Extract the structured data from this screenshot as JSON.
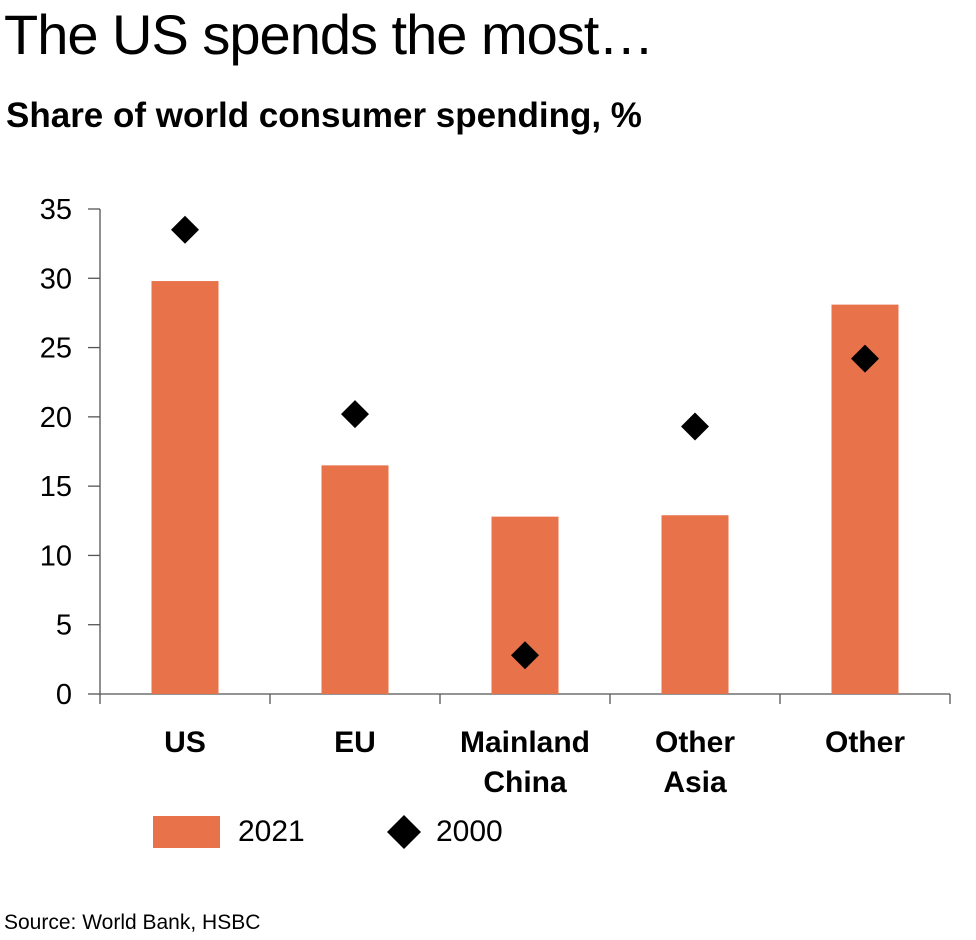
{
  "title": "The US spends the most…",
  "subtitle": "Share of world consumer spending, %",
  "source": "Source: World Bank, HSBC",
  "colors": {
    "bar": "#E8734A",
    "marker": "#000000",
    "axis": "#555555"
  },
  "chart_data": {
    "type": "bar",
    "categories": [
      [
        "US"
      ],
      [
        "EU"
      ],
      [
        "Mainland",
        "China"
      ],
      [
        "Other",
        "Asia"
      ],
      [
        "Other"
      ]
    ],
    "series": [
      {
        "name": "2021",
        "kind": "bar",
        "values": [
          29.8,
          16.5,
          12.8,
          12.9,
          28.1
        ]
      },
      {
        "name": "2000",
        "kind": "marker",
        "marker": "diamond",
        "values": [
          33.5,
          20.2,
          2.8,
          19.3,
          24.2
        ]
      }
    ],
    "ylim": [
      0,
      35
    ],
    "yticks": [
      0,
      5,
      10,
      15,
      20,
      25,
      30,
      35
    ],
    "grid": false,
    "legend_position": "bottom"
  }
}
